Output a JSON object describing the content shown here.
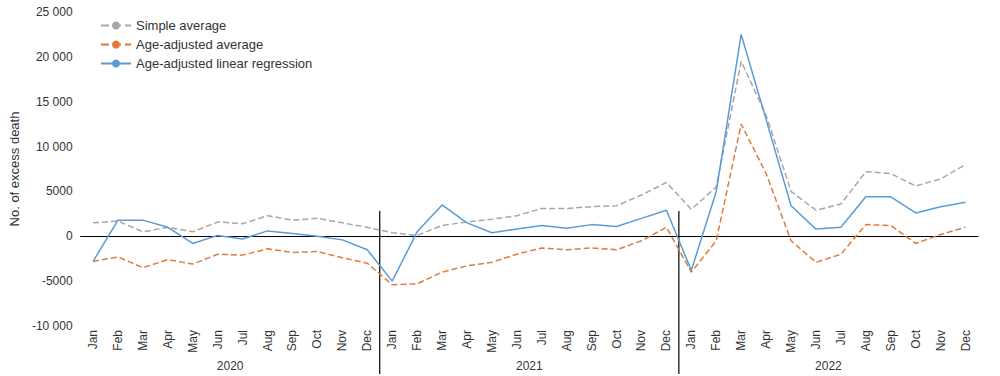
{
  "chart_data": {
    "type": "line",
    "y_label": "No. of excess death",
    "categories": [
      "Jan",
      "Feb",
      "Mar",
      "Apr",
      "May",
      "Jun",
      "Jul",
      "Aug",
      "Sep",
      "Oct",
      "Nov",
      "Dec",
      "Jan",
      "Feb",
      "Mar",
      "Apr",
      "May",
      "Jun",
      "Jul",
      "Aug",
      "Sep",
      "Oct",
      "Nov",
      "Dec",
      "Jan",
      "Feb",
      "Mar",
      "Apr",
      "May",
      "Jun",
      "Jul",
      "Aug",
      "Sep",
      "Oct",
      "Nov",
      "Dec"
    ],
    "x_groups": [
      "2020",
      "2021",
      "2022"
    ],
    "series": [
      {
        "name": "Simple average",
        "color": "#a6a6a6",
        "line_style": "dashed",
        "marker": "none",
        "values": [
          1500,
          1700,
          500,
          1000,
          500,
          1600,
          1400,
          2300,
          1800,
          2000,
          1500,
          1000,
          400,
          100,
          1200,
          1600,
          1900,
          2300,
          3100,
          3100,
          3300,
          3400,
          4600,
          6000,
          3000,
          5500,
          19500,
          13500,
          5000,
          2900,
          3600,
          7200,
          7000,
          5600,
          6400,
          8000
        ]
      },
      {
        "name": "Age-adjusted average",
        "color": "#e07b39",
        "line_style": "dashed",
        "marker": "none",
        "values": [
          -2800,
          -2300,
          -3500,
          -2600,
          -3100,
          -2000,
          -2100,
          -1400,
          -1800,
          -1700,
          -2400,
          -3000,
          -5400,
          -5300,
          -4000,
          -3300,
          -2900,
          -2000,
          -1300,
          -1500,
          -1300,
          -1500,
          -500,
          1000,
          -4000,
          -500,
          12500,
          7000,
          -500,
          -2900,
          -2000,
          1300,
          1200,
          -800,
          200,
          1000
        ]
      },
      {
        "name": "Age-adjusted linear regression",
        "color": "#5b9bd5",
        "line_style": "solid",
        "marker": "none",
        "values": [
          -2800,
          1800,
          1800,
          1000,
          -800,
          100,
          -300,
          600,
          300,
          0,
          -400,
          -1500,
          -5000,
          500,
          3500,
          1500,
          400,
          800,
          1200,
          900,
          1300,
          1100,
          2000,
          2900,
          -3800,
          5000,
          22500,
          13000,
          3400,
          800,
          1000,
          4400,
          4400,
          2600,
          3300,
          3800
        ]
      }
    ],
    "ylim": [
      -10000,
      25000
    ],
    "yticks": [
      {
        "value": -10000,
        "label": "-10 000"
      },
      -5000,
      0,
      5000,
      {
        "value": 10000,
        "label": "10 000"
      },
      {
        "value": 15000,
        "label": "15 000"
      },
      {
        "value": 20000,
        "label": "20 000"
      },
      {
        "value": 25000,
        "label": "25 000"
      }
    ],
    "grid": false,
    "legend": "upper left"
  }
}
